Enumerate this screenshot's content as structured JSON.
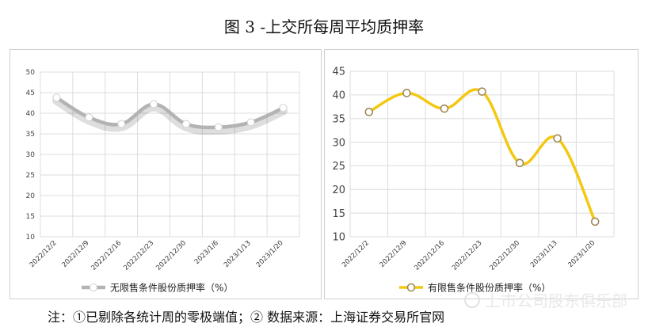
{
  "title": "图 3 -上交所每周平均质押率",
  "footnote": "注：①已剔除各统计周的零极端值；② 数据来源：上海证券交易所官网",
  "watermark": "上市公司股东俱乐部",
  "chart_data": [
    {
      "type": "line",
      "categories": [
        "2022/12/2",
        "2022/12/9",
        "2022/12/16",
        "2022/12/23",
        "2022/12/30",
        "2023/1/6",
        "2023/1/13",
        "2023/1/20"
      ],
      "series": [
        {
          "name": "无限售条件股份质押率（%）",
          "values": [
            43.8,
            39.0,
            37.4,
            42.2,
            37.4,
            36.6,
            37.8,
            41.3
          ],
          "color": "#b3b3b3"
        }
      ],
      "ylim": [
        10,
        50
      ],
      "yticks": [
        10,
        15,
        20,
        25,
        30,
        35,
        40,
        45,
        50
      ],
      "grid": true,
      "legend": "bottom",
      "smooth": true
    },
    {
      "type": "line",
      "categories": [
        "2022/12/2",
        "2022/12/9",
        "2022/12/16",
        "2022/12/23",
        "2022/12/30",
        "2023/1/13",
        "2023/1/20"
      ],
      "series": [
        {
          "name": "有限售条件股份质押率（%）",
          "values": [
            36.4,
            40.4,
            37.1,
            40.7,
            25.6,
            30.8,
            13.2
          ],
          "color": "#f2c811"
        }
      ],
      "ylim": [
        10,
        45
      ],
      "yticks": [
        10,
        15,
        20,
        25,
        30,
        35,
        40,
        45
      ],
      "grid": true,
      "legend": "bottom",
      "smooth": true
    }
  ]
}
